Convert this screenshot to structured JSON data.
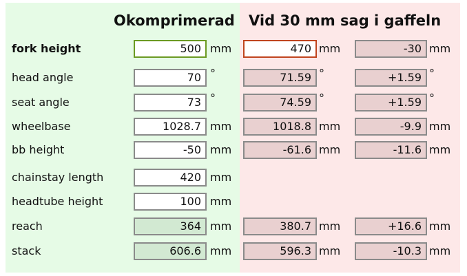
{
  "header": {
    "base": "Okomprimerad",
    "sag": "Vid 30 mm sag i gaffeln"
  },
  "rows": [
    {
      "label": "fork height",
      "base": {
        "value": "500",
        "unit": "mm"
      },
      "sag": {
        "value": "470",
        "unit": "mm"
      },
      "diff": {
        "value": "-30",
        "unit": "mm"
      }
    },
    {
      "label": "head angle",
      "base": {
        "value": "70",
        "unit": "°"
      },
      "sag": {
        "value": "71.59",
        "unit": "°"
      },
      "diff": {
        "value": "+1.59",
        "unit": "°"
      }
    },
    {
      "label": "seat angle",
      "base": {
        "value": "73",
        "unit": "°"
      },
      "sag": {
        "value": "74.59",
        "unit": "°"
      },
      "diff": {
        "value": "+1.59",
        "unit": "°"
      }
    },
    {
      "label": "wheelbase",
      "base": {
        "value": "1028.7",
        "unit": "mm"
      },
      "sag": {
        "value": "1018.8",
        "unit": "mm"
      },
      "diff": {
        "value": "-9.9",
        "unit": "mm"
      }
    },
    {
      "label": "bb height",
      "base": {
        "value": "-50",
        "unit": "mm"
      },
      "sag": {
        "value": "-61.6",
        "unit": "mm"
      },
      "diff": {
        "value": "-11.6",
        "unit": "mm"
      }
    },
    {
      "label": "chainstay length",
      "base": {
        "value": "420",
        "unit": "mm"
      }
    },
    {
      "label": "headtube height",
      "base": {
        "value": "100",
        "unit": "mm"
      }
    },
    {
      "label": "reach",
      "base": {
        "value": "364",
        "unit": "mm"
      },
      "sag": {
        "value": "380.7",
        "unit": "mm"
      },
      "diff": {
        "value": "+16.6",
        "unit": "mm"
      }
    },
    {
      "label": "stack",
      "base": {
        "value": "606.6",
        "unit": "mm"
      },
      "sag": {
        "value": "596.3",
        "unit": "mm"
      },
      "diff": {
        "value": "-10.3",
        "unit": "mm"
      }
    }
  ]
}
